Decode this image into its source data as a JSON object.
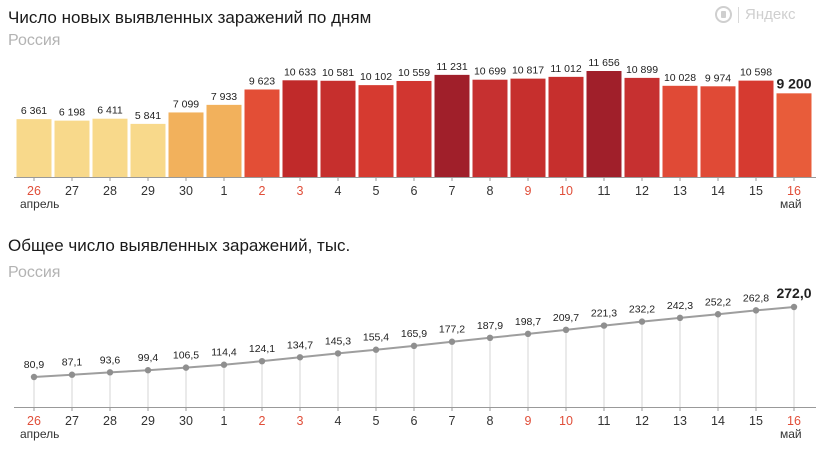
{
  "logo": {
    "text": "Яндекс",
    "icon": "yandex-circle-icon"
  },
  "top": {
    "title": "Число новых выявленных заражений по дням",
    "subtitle": "Россия"
  },
  "bottom": {
    "title": "Общее число выявленных заражений, тыс.",
    "subtitle": "Россия"
  },
  "month_labels": {
    "start": "апрель",
    "end": "май"
  },
  "colors": {
    "weekend_label": "#e04e39",
    "weekday_label": "#333333",
    "line": "#9e9e9e",
    "axis": "#999999"
  },
  "chart_data": [
    {
      "type": "bar",
      "title": "Число новых выявленных заражений по дням",
      "subtitle": "Россия",
      "categories": [
        "26",
        "27",
        "28",
        "29",
        "30",
        "1",
        "2",
        "3",
        "4",
        "5",
        "6",
        "7",
        "8",
        "9",
        "10",
        "11",
        "12",
        "13",
        "14",
        "15",
        "16"
      ],
      "weekend": [
        true,
        false,
        false,
        false,
        false,
        false,
        true,
        true,
        false,
        false,
        false,
        false,
        false,
        true,
        true,
        false,
        false,
        false,
        false,
        false,
        true
      ],
      "values": [
        6361,
        6198,
        6411,
        5841,
        7099,
        7933,
        9623,
        10633,
        10581,
        10102,
        10559,
        11231,
        10699,
        10817,
        11012,
        11656,
        10899,
        10028,
        9974,
        10598,
        9200
      ],
      "value_labels": [
        "6 361",
        "6 198",
        "6 411",
        "5 841",
        "7 099",
        "7 933",
        "9 623",
        "10 633",
        "10 581",
        "10 102",
        "10 559",
        "11 231",
        "10 699",
        "10 817",
        "11 012",
        "11 656",
        "10 899",
        "10 028",
        "9 974",
        "10 598",
        "9 200"
      ],
      "colors": [
        "#f8d98b",
        "#f8d98b",
        "#f8d98b",
        "#f8d98b",
        "#f2b15c",
        "#f2b15c",
        "#e34e36",
        "#c02a2a",
        "#c62f2d",
        "#d63a30",
        "#d13630",
        "#a01f2a",
        "#c63030",
        "#c62f2d",
        "#c62f2d",
        "#a01f2a",
        "#c63030",
        "#e04a36",
        "#e04a36",
        "#d63a30",
        "#e85c3a"
      ],
      "ylim": [
        0,
        12500
      ],
      "xlabel": "",
      "ylabel": "",
      "legend": "none",
      "grid": false
    },
    {
      "type": "line",
      "title": "Общее число выявленных заражений, тыс.",
      "subtitle": "Россия",
      "categories": [
        "26",
        "27",
        "28",
        "29",
        "30",
        "1",
        "2",
        "3",
        "4",
        "5",
        "6",
        "7",
        "8",
        "9",
        "10",
        "11",
        "12",
        "13",
        "14",
        "15",
        "16"
      ],
      "weekend": [
        true,
        false,
        false,
        false,
        false,
        false,
        true,
        true,
        false,
        false,
        false,
        false,
        false,
        true,
        true,
        false,
        false,
        false,
        false,
        false,
        true
      ],
      "values": [
        80.9,
        87.1,
        93.6,
        99.4,
        106.5,
        114.4,
        124.1,
        134.7,
        145.3,
        155.4,
        165.9,
        177.2,
        187.9,
        198.7,
        209.7,
        221.3,
        232.2,
        242.3,
        252.2,
        262.8,
        272.0
      ],
      "value_labels": [
        "80,9",
        "87,1",
        "93,6",
        "99,4",
        "106,5",
        "114,4",
        "124,1",
        "134,7",
        "145,3",
        "155,4",
        "165,9",
        "177,2",
        "187,9",
        "198,7",
        "209,7",
        "221,3",
        "232,2",
        "242,3",
        "252,2",
        "262,8",
        "272,0"
      ],
      "ylim": [
        0,
        420
      ],
      "xlabel": "",
      "ylabel": "",
      "legend": "none",
      "grid": "vertical"
    }
  ]
}
